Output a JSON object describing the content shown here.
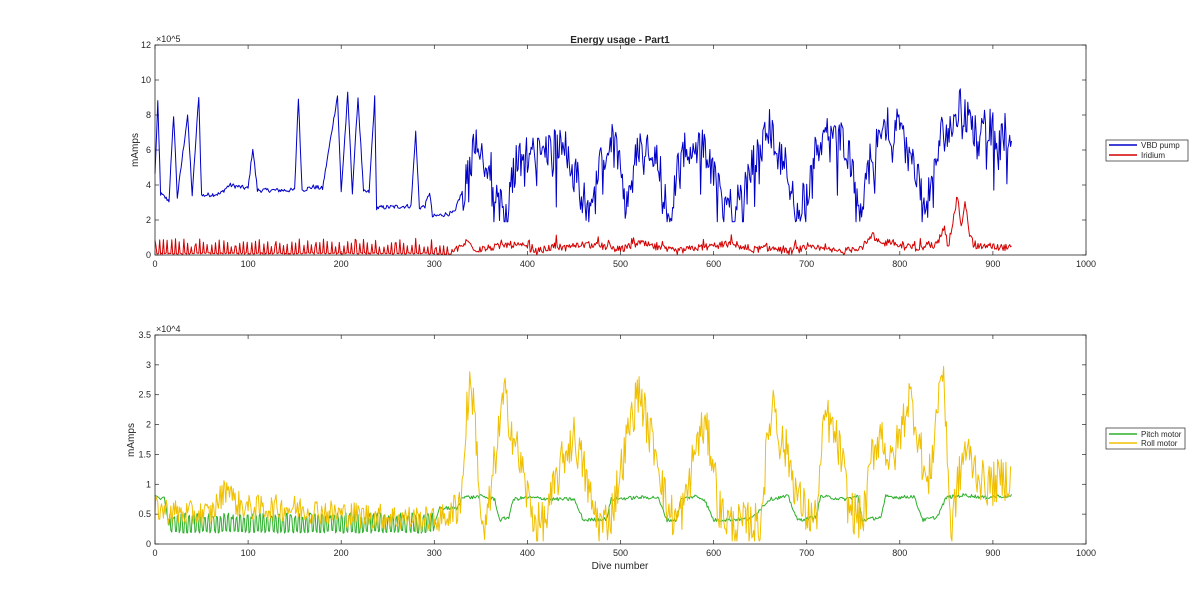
{
  "chart_data": [
    {
      "type": "line",
      "title": "Energy usage - Part1",
      "xlabel": "",
      "ylabel": "mAmps",
      "y_exponent": "×10^5",
      "xlim": [
        0,
        1000
      ],
      "ylim": [
        0,
        12
      ],
      "xticks": [
        0,
        100,
        200,
        300,
        400,
        500,
        600,
        700,
        800,
        900,
        1000
      ],
      "yticks": [
        0,
        2,
        4,
        6,
        8,
        10,
        12
      ],
      "grid": false,
      "legend_position": "right",
      "series": [
        {
          "name": "VBD pump",
          "color": "#0000c8",
          "kind": "vbd",
          "points": [
            [
              0,
              4.6
            ],
            [
              3,
              8.7
            ],
            [
              6,
              3.5
            ],
            [
              15,
              3.1
            ],
            [
              20,
              8.0
            ],
            [
              24,
              3.3
            ],
            [
              35,
              8.0
            ],
            [
              40,
              3.4
            ],
            [
              47,
              9.1
            ],
            [
              50,
              3.4
            ],
            [
              70,
              3.5
            ],
            [
              80,
              4.0
            ],
            [
              90,
              3.9
            ],
            [
              100,
              3.8
            ],
            [
              105,
              6.1
            ],
            [
              110,
              3.7
            ],
            [
              150,
              3.7
            ],
            [
              154,
              9.0
            ],
            [
              158,
              3.7
            ],
            [
              170,
              3.9
            ],
            [
              180,
              3.8
            ],
            [
              196,
              9.1
            ],
            [
              200,
              3.6
            ],
            [
              207,
              9.2
            ],
            [
              212,
              3.6
            ],
            [
              218,
              9.0
            ],
            [
              224,
              3.6
            ],
            [
              230,
              3.6
            ],
            [
              236,
              9.0
            ],
            [
              238,
              2.7
            ],
            [
              275,
              2.8
            ],
            [
              280,
              7.0
            ],
            [
              284,
              2.7
            ],
            [
              290,
              2.8
            ],
            [
              295,
              3.6
            ],
            [
              298,
              2.2
            ],
            [
              320,
              2.4
            ],
            [
              323,
              2.5
            ],
            [
              325,
              3.0
            ],
            [
              335,
              4.2
            ],
            [
              340,
              5.5
            ],
            [
              345,
              7.0
            ],
            [
              350,
              6.0
            ],
            [
              360,
              5.2
            ],
            [
              370,
              3.0
            ],
            [
              375,
              2.6
            ],
            [
              380,
              3.4
            ],
            [
              385,
              4.8
            ],
            [
              395,
              6.3
            ],
            [
              410,
              5.8
            ],
            [
              420,
              6.0
            ],
            [
              430,
              6.3
            ],
            [
              440,
              6.2
            ],
            [
              450,
              5.0
            ],
            [
              460,
              3.2
            ],
            [
              465,
              2.5
            ],
            [
              470,
              3.3
            ],
            [
              480,
              5.5
            ],
            [
              490,
              6.5
            ],
            [
              500,
              5.8
            ],
            [
              505,
              2.7
            ],
            [
              510,
              4.0
            ],
            [
              520,
              6.3
            ],
            [
              530,
              6.5
            ],
            [
              540,
              5.8
            ],
            [
              545,
              4.0
            ],
            [
              550,
              2.4
            ],
            [
              555,
              2.6
            ],
            [
              560,
              4.5
            ],
            [
              570,
              6.5
            ],
            [
              590,
              6.0
            ],
            [
              600,
              5.8
            ],
            [
              610,
              3.0
            ],
            [
              620,
              2.8
            ],
            [
              630,
              3.5
            ],
            [
              640,
              5.0
            ],
            [
              650,
              6.0
            ],
            [
              660,
              7.3
            ],
            [
              670,
              6.0
            ],
            [
              680,
              5.0
            ],
            [
              685,
              3.2
            ],
            [
              690,
              2.8
            ],
            [
              700,
              3.5
            ],
            [
              710,
              6.0
            ],
            [
              720,
              7.0
            ],
            [
              740,
              6.6
            ],
            [
              750,
              5.0
            ],
            [
              755,
              3.0
            ],
            [
              760,
              3.0
            ],
            [
              770,
              6.0
            ],
            [
              780,
              7.5
            ],
            [
              800,
              7.2
            ],
            [
              815,
              5.0
            ],
            [
              825,
              3.2
            ],
            [
              835,
              4.2
            ],
            [
              845,
              7.0
            ],
            [
              855,
              7.0
            ],
            [
              865,
              8.5
            ],
            [
              880,
              7.2
            ],
            [
              890,
              7.4
            ],
            [
              905,
              7.2
            ],
            [
              920,
              7.0
            ]
          ]
        },
        {
          "name": "Iridium",
          "color": "#d40000",
          "kind": "iridium",
          "points": [
            [
              0,
              0.0
            ],
            [
              320,
              0.2
            ],
            [
              330,
              0.5
            ],
            [
              335,
              0.8
            ],
            [
              345,
              0.3
            ],
            [
              360,
              0.4
            ],
            [
              380,
              0.6
            ],
            [
              395,
              0.5
            ],
            [
              410,
              0.2
            ],
            [
              430,
              0.5
            ],
            [
              440,
              0.4
            ],
            [
              460,
              0.6
            ],
            [
              480,
              0.5
            ],
            [
              500,
              0.3
            ],
            [
              520,
              0.7
            ],
            [
              540,
              0.4
            ],
            [
              560,
              0.2
            ],
            [
              580,
              0.4
            ],
            [
              600,
              0.5
            ],
            [
              620,
              0.6
            ],
            [
              640,
              0.3
            ],
            [
              660,
              0.4
            ],
            [
              680,
              0.2
            ],
            [
              700,
              0.4
            ],
            [
              720,
              0.3
            ],
            [
              740,
              0.2
            ],
            [
              760,
              0.5
            ],
            [
              770,
              1.0
            ],
            [
              780,
              0.6
            ],
            [
              790,
              0.8
            ],
            [
              800,
              0.5
            ],
            [
              820,
              0.4
            ],
            [
              840,
              0.6
            ],
            [
              848,
              1.6
            ],
            [
              852,
              0.4
            ],
            [
              862,
              3.4
            ],
            [
              866,
              1.4
            ],
            [
              870,
              3.2
            ],
            [
              874,
              1.3
            ],
            [
              880,
              0.5
            ],
            [
              900,
              0.5
            ],
            [
              920,
              0.4
            ]
          ]
        }
      ]
    },
    {
      "type": "line",
      "title": "",
      "xlabel": "Dive number",
      "ylabel": "mAmps",
      "y_exponent": "×10^4",
      "xlim": [
        0,
        1000
      ],
      "ylim": [
        0,
        3.5
      ],
      "xticks": [
        0,
        100,
        200,
        300,
        400,
        500,
        600,
        700,
        800,
        900,
        1000
      ],
      "yticks": [
        0,
        0.5,
        1,
        1.5,
        2,
        2.5,
        3,
        3.5
      ],
      "grid": false,
      "legend_position": "right",
      "series": [
        {
          "name": "Pitch motor",
          "color": "#2db02d",
          "kind": "pitch",
          "points": [
            [
              0,
              0.8
            ],
            [
              5,
              0.75
            ],
            [
              10,
              0.8
            ],
            [
              15,
              0.3
            ],
            [
              300,
              0.3
            ],
            [
              305,
              0.6
            ],
            [
              325,
              0.6
            ],
            [
              330,
              0.8
            ],
            [
              340,
              0.78
            ],
            [
              350,
              0.8
            ],
            [
              365,
              0.75
            ],
            [
              370,
              0.4
            ],
            [
              380,
              0.45
            ],
            [
              385,
              0.75
            ],
            [
              400,
              0.78
            ],
            [
              430,
              0.75
            ],
            [
              450,
              0.75
            ],
            [
              460,
              0.4
            ],
            [
              485,
              0.42
            ],
            [
              490,
              0.75
            ],
            [
              520,
              0.78
            ],
            [
              540,
              0.78
            ],
            [
              550,
              0.4
            ],
            [
              560,
              0.4
            ],
            [
              565,
              0.75
            ],
            [
              580,
              0.8
            ],
            [
              590,
              0.75
            ],
            [
              600,
              0.4
            ],
            [
              640,
              0.42
            ],
            [
              660,
              0.75
            ],
            [
              680,
              0.8
            ],
            [
              690,
              0.4
            ],
            [
              710,
              0.45
            ],
            [
              715,
              0.8
            ],
            [
              740,
              0.75
            ],
            [
              755,
              0.8
            ],
            [
              760,
              0.4
            ],
            [
              780,
              0.45
            ],
            [
              785,
              0.8
            ],
            [
              800,
              0.78
            ],
            [
              815,
              0.8
            ],
            [
              825,
              0.4
            ],
            [
              840,
              0.45
            ],
            [
              850,
              0.78
            ],
            [
              870,
              0.82
            ],
            [
              890,
              0.78
            ],
            [
              905,
              0.8
            ],
            [
              920,
              0.8
            ]
          ]
        },
        {
          "name": "Roll motor",
          "color": "#f0c000",
          "kind": "roll",
          "points": [
            [
              0,
              0.6
            ],
            [
              30,
              0.5
            ],
            [
              60,
              0.5
            ],
            [
              75,
              0.9
            ],
            [
              80,
              1.0
            ],
            [
              85,
              0.7
            ],
            [
              100,
              0.6
            ],
            [
              150,
              0.6
            ],
            [
              200,
              0.5
            ],
            [
              250,
              0.45
            ],
            [
              300,
              0.4
            ],
            [
              320,
              0.5
            ],
            [
              330,
              0.9
            ],
            [
              335,
              2.3
            ],
            [
              340,
              2.7
            ],
            [
              345,
              1.8
            ],
            [
              350,
              0.5
            ],
            [
              352,
              0.1
            ],
            [
              358,
              0.5
            ],
            [
              365,
              1.4
            ],
            [
              375,
              2.5
            ],
            [
              385,
              1.8
            ],
            [
              395,
              1.2
            ],
            [
              400,
              0.8
            ],
            [
              410,
              0.3
            ],
            [
              420,
              0.4
            ],
            [
              430,
              1.0
            ],
            [
              440,
              1.5
            ],
            [
              450,
              1.8
            ],
            [
              460,
              1.3
            ],
            [
              470,
              0.6
            ],
            [
              480,
              0.3
            ],
            [
              490,
              0.5
            ],
            [
              500,
              1.2
            ],
            [
              510,
              2.0
            ],
            [
              520,
              2.6
            ],
            [
              530,
              1.9
            ],
            [
              540,
              1.5
            ],
            [
              545,
              1.0
            ],
            [
              550,
              0.6
            ],
            [
              560,
              0.4
            ],
            [
              570,
              0.7
            ],
            [
              580,
              1.6
            ],
            [
              590,
              2.0
            ],
            [
              600,
              1.4
            ],
            [
              605,
              0.6
            ],
            [
              620,
              0.3
            ],
            [
              640,
              0.35
            ],
            [
              650,
              0.3
            ],
            [
              655,
              1.2
            ],
            [
              660,
              2.0
            ],
            [
              665,
              2.5
            ],
            [
              670,
              1.8
            ],
            [
              680,
              1.5
            ],
            [
              690,
              0.8
            ],
            [
              700,
              0.5
            ],
            [
              710,
              0.4
            ],
            [
              715,
              1.3
            ],
            [
              720,
              2.2
            ],
            [
              735,
              1.6
            ],
            [
              740,
              1.2
            ],
            [
              745,
              0.6
            ],
            [
              760,
              0.4
            ],
            [
              765,
              0.8
            ],
            [
              770,
              1.5
            ],
            [
              780,
              1.9
            ],
            [
              790,
              1.3
            ],
            [
              800,
              1.8
            ],
            [
              810,
              2.5
            ],
            [
              815,
              2.2
            ],
            [
              820,
              1.8
            ],
            [
              830,
              0.9
            ],
            [
              835,
              1.5
            ],
            [
              845,
              3.0
            ],
            [
              850,
              2.0
            ],
            [
              855,
              0.1
            ],
            [
              860,
              0.8
            ],
            [
              870,
              1.6
            ],
            [
              880,
              1.3
            ],
            [
              890,
              1.0
            ],
            [
              900,
              1.0
            ],
            [
              910,
              1.1
            ],
            [
              920,
              1.1
            ]
          ]
        }
      ]
    }
  ]
}
